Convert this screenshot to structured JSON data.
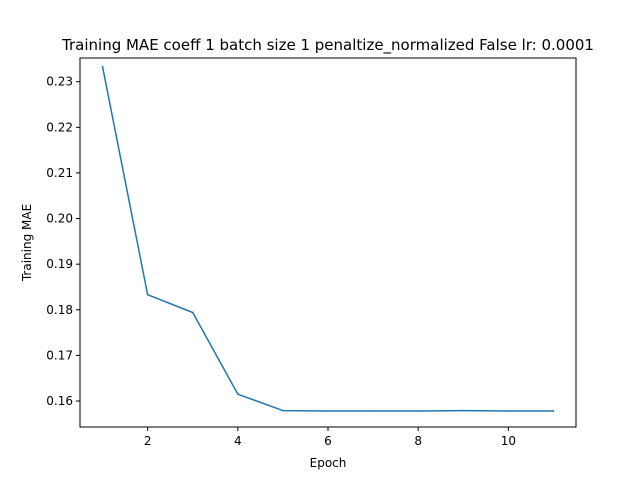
{
  "chart_data": {
    "type": "line",
    "title": "Training MAE coeff 1 batch size 1 penaltize_normalized False lr: 0.0001",
    "xlabel": "Epoch",
    "ylabel": "Training MAE",
    "xlim": [
      0.5,
      11.5
    ],
    "ylim": [
      0.1543,
      0.2352
    ],
    "x_ticks": [
      2,
      4,
      6,
      8,
      10
    ],
    "y_ticks": [
      0.16,
      0.17,
      0.18,
      0.19,
      0.2,
      0.21,
      0.22,
      0.23
    ],
    "grid": false,
    "series": [
      {
        "color": "#1f77b4",
        "x": [
          1,
          2,
          3,
          4,
          5,
          6,
          7,
          8,
          9,
          10,
          11
        ],
        "y": [
          0.2333,
          0.1833,
          0.1794,
          0.1615,
          0.1579,
          0.1578,
          0.1578,
          0.1578,
          0.1579,
          0.1578,
          0.1578
        ]
      }
    ]
  }
}
